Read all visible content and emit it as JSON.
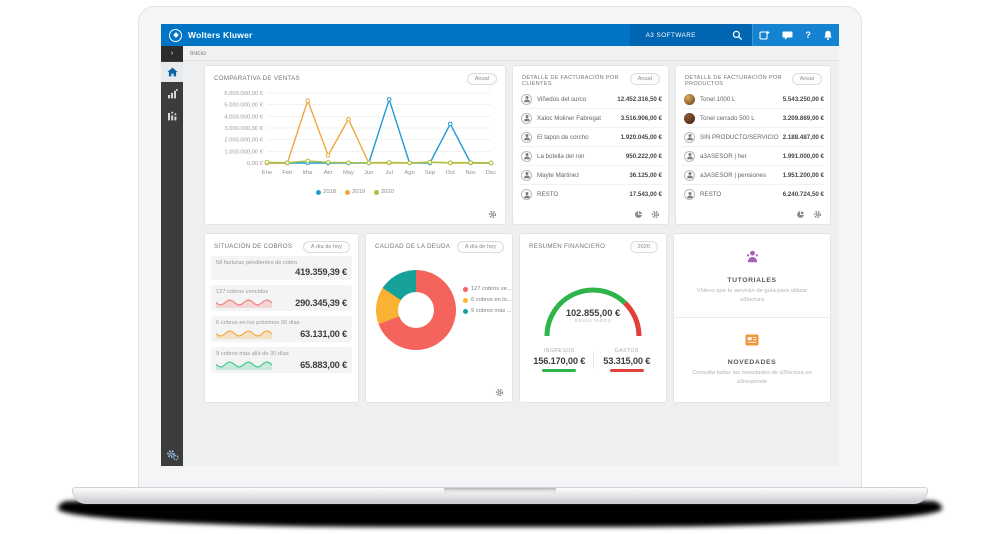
{
  "theme": {
    "topbar_blue": "#0074c5",
    "topbar_dark": "#0066b1",
    "topbar_light": "#1583d1",
    "sidebar_dark": "#3c3c3b",
    "main_bg": "#edeff0",
    "active_icon_blue": "#0e64a4"
  },
  "topbar": {
    "brand": "Wolters Kluwer",
    "product": "A3 SOFTWARE",
    "help_glyph": "?",
    "icons": [
      "search-icon",
      "apps-icon",
      "chat-icon",
      "help-icon",
      "bell-icon"
    ]
  },
  "breadcrumb": {
    "toggle_glyph": "›",
    "label": "Inicio"
  },
  "sidebar": {
    "items": [
      "home",
      "chart-bars",
      "chart-stats",
      "settings-cogs"
    ]
  },
  "cards": {
    "ventas": {
      "title": "COMPARATIVA DE VENTAS",
      "badge": "Anual"
    },
    "clientes": {
      "title": "DETALLE DE FACTURACIÓN POR CLIENTES",
      "badge": "Anual",
      "rows": [
        {
          "icon": "person",
          "name": "Viñedos del surco",
          "value": "12.452.316,50 €"
        },
        {
          "icon": "person",
          "name": "Xaloc Moliner Fabregat",
          "value": "3.516.906,00 €"
        },
        {
          "icon": "person",
          "name": "El tapon de corcho",
          "value": "1.920.045,00 €"
        },
        {
          "icon": "person",
          "name": "La botella del ron",
          "value": "950.222,00 €"
        },
        {
          "icon": "person",
          "name": "Mayte Mártinez",
          "value": "36.125,00 €"
        },
        {
          "icon": "person",
          "name": "RESTO",
          "value": "17.543,00 €"
        }
      ],
      "footer_icons": [
        "pie-icon",
        "gear-icon"
      ]
    },
    "productos": {
      "title": "DETALLE DE FACTURACIÓN POR PRODUCTOS",
      "badge": "Anual",
      "rows": [
        {
          "icon": "barrel-light",
          "name": "Tonel 1000 L",
          "value": "5.543.250,00 €"
        },
        {
          "icon": "barrel-dark",
          "name": "Tonel cerrado 500 L",
          "value": "3.209.869,00 €"
        },
        {
          "icon": "person",
          "name": "SIN PRODUCTO/SERVICIO",
          "value": "2.188.487,00 €"
        },
        {
          "icon": "person",
          "name": "a3ASESOR | her",
          "value": "1.991.000,00 €"
        },
        {
          "icon": "person",
          "name": "a3ASESOR | pensiones",
          "value": "1.951.200,00 €"
        },
        {
          "icon": "person",
          "name": "RESTO",
          "value": "6.240.724,50 €"
        }
      ],
      "footer_icons": [
        "pie-icon",
        "gear-icon"
      ]
    },
    "cobros": {
      "title": "SITUACIÓN DE COBROS",
      "badge": "A día de hoy",
      "items": [
        {
          "label": "58 facturas pendientes de cobro",
          "value": "419.359,39 €",
          "trend_color": null
        },
        {
          "label": "127 cobros vencidos",
          "value": "290.345,39 €",
          "trend_color": "#f2807b"
        },
        {
          "label": "6 cobros en los próximos 30 días",
          "value": "63.131,00 €",
          "trend_color": "#f6ab40"
        },
        {
          "label": "9 cobros más allá de 30 días",
          "value": "65.883,00 €",
          "trend_color": "#46c98f"
        }
      ]
    },
    "deuda": {
      "title": "CALIDAD DE LA DEUDA",
      "badge": "A día de hoy"
    },
    "resumen": {
      "title": "RESUMEN FINANCIERO",
      "badge": "2020",
      "ingresos_label": "INGRESOS",
      "ingresos_value": "156.170,00 €",
      "gastos_label": "GASTOS",
      "gastos_value": "53.315,00 €"
    },
    "ayuda": {
      "tutoriales_title": "TUTORIALES",
      "tutoriales_text": "Vídeos que te servirán de guía para utilizar a3factura",
      "novedades_title": "NOVEDADES",
      "novedades_text": "Consulta todas las novedades de a3factura en a3responde"
    }
  },
  "chart_data": [
    {
      "type": "line",
      "title": "COMPARATIVA DE VENTAS",
      "categories": [
        "Ene",
        "Feb",
        "Mar",
        "Abr",
        "May",
        "Jun",
        "Jul",
        "Ago",
        "Sep",
        "Oct",
        "Nov",
        "Dec"
      ],
      "series": [
        {
          "name": "2018",
          "color": "#209bd8",
          "values": [
            0,
            0,
            0,
            0,
            0,
            0,
            5450000,
            0,
            0,
            3350000,
            0,
            0
          ]
        },
        {
          "name": "2019",
          "color": "#efa73f",
          "values": [
            0,
            0,
            5350000,
            650000,
            3750000,
            0,
            0,
            0,
            80000,
            0,
            0,
            0
          ]
        },
        {
          "name": "2020",
          "color": "#a9c23d",
          "values": [
            60000,
            30000,
            180000,
            60000,
            30000,
            20000,
            50000,
            20000,
            60000,
            30000,
            40000,
            20000
          ]
        }
      ],
      "ylim": [
        0,
        6000000
      ],
      "ytick_values": [
        0,
        1000000,
        2000000,
        3000000,
        4000000,
        5000000,
        6000000
      ],
      "ytick_labels": [
        "0,00 €",
        "1.000.000,00 €",
        "2.000.000,00 €",
        "3.000.000,00 €",
        "4.000.000,00 €",
        "5.000.000,00 €",
        "6.000.000,00 €"
      ],
      "grid": true,
      "legend_position": "bottom"
    },
    {
      "type": "pie",
      "subtype": "donut",
      "title": "CALIDAD DE LA DEUDA",
      "labels": [
        "127 cobros ve...",
        "6 cobros en lo...",
        "9 cobros más ..."
      ],
      "values": [
        290345.39,
        63131.0,
        65883.0
      ],
      "colors": [
        "#f4635c",
        "#f9b233",
        "#16a29a"
      ],
      "legend_position": "right"
    },
    {
      "type": "pie",
      "subtype": "semicircle-gauge",
      "title": "RESUMEN FINANCIERO",
      "segments": [
        {
          "name": "INGRESOS",
          "value": 156170.0,
          "color": "#2fb44b"
        },
        {
          "name": "GASTOS",
          "value": 53315.0,
          "color": "#e33f39"
        }
      ],
      "center_value": "102.855,00 €",
      "center_label": "RESULTADOS"
    }
  ]
}
